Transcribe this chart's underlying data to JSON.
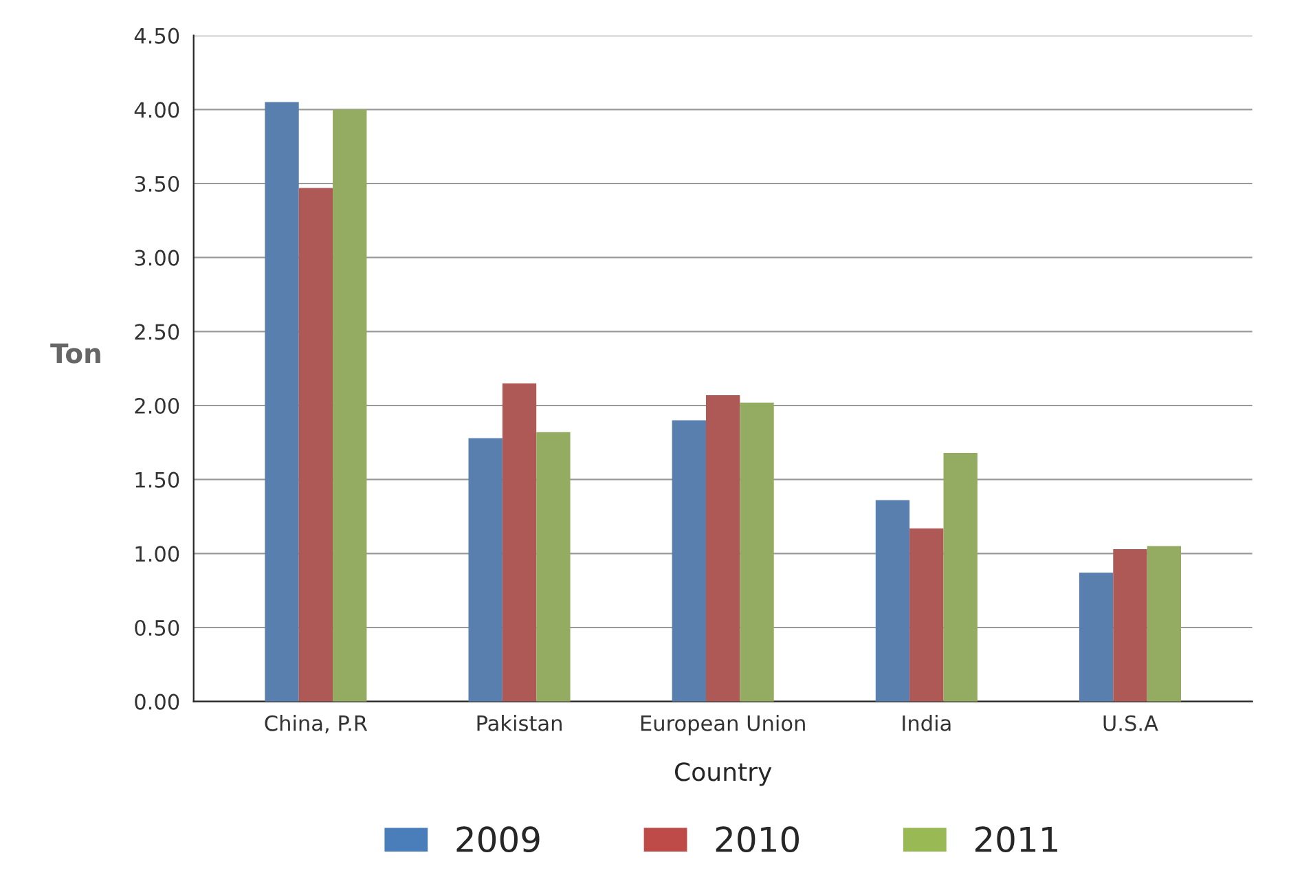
{
  "chart_data": {
    "type": "bar",
    "xlabel": "Country",
    "ylabel": "Ton",
    "categories": [
      "China, P.R",
      "Pakistan",
      "European Union",
      "India",
      "U.S.A"
    ],
    "series": [
      {
        "name": "2009",
        "color": "#4a7ebb",
        "values": [
          4.05,
          1.78,
          1.9,
          1.36,
          0.87
        ]
      },
      {
        "name": "2010",
        "color": "#be4b48",
        "values": [
          3.47,
          2.15,
          2.07,
          1.17,
          1.03
        ]
      },
      {
        "name": "2011",
        "color": "#98b954",
        "values": [
          4.0,
          1.82,
          2.02,
          1.68,
          1.05
        ]
      }
    ],
    "ylim": [
      0,
      4.5
    ],
    "yticks": [
      {
        "value": 0,
        "label": "0.00"
      },
      {
        "value": 0.5,
        "label": "0.50"
      },
      {
        "value": 1,
        "label": "1.00"
      },
      {
        "value": 1.5,
        "label": "1.50"
      },
      {
        "value": 2,
        "label": "2.00"
      },
      {
        "value": 2.5,
        "label": "2.50"
      },
      {
        "value": 3,
        "label": "3.00"
      },
      {
        "value": 3.5,
        "label": "3.50"
      },
      {
        "value": 4,
        "label": "4.00"
      },
      {
        "value": 4.5,
        "label": "4.50"
      }
    ],
    "grid": "y",
    "legend": "bottom"
  }
}
